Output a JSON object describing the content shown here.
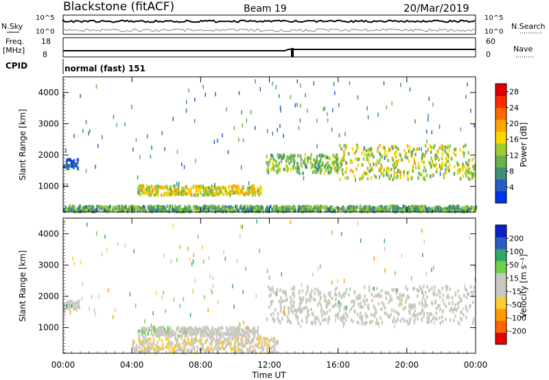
{
  "header": {
    "station": "Blackstone (fitACF)",
    "beam": "Beam 19",
    "date": "20/Mar/2019"
  },
  "strips": {
    "nsky_label": "N.Sky",
    "nsky_ticks": [
      "10^5",
      "10^0"
    ],
    "nsearch_label": "N.Search",
    "nsearch_ticks": [
      "10^5",
      "10^0"
    ],
    "freq_label": "Freq.",
    "freq_unit": "[MHz]",
    "freq_ticks": [
      "18",
      "8"
    ],
    "nave_label": "Nave",
    "nave_ticks": [
      "60",
      "0"
    ],
    "cpid_label": "CPID",
    "cpid_value": "normal (fast) 151"
  },
  "colors": {
    "power": [
      "#0033ee",
      "#2a5cc7",
      "#3e8f7a",
      "#6ab04c",
      "#9acd32",
      "#ffd700",
      "#ffa500",
      "#ff6a00",
      "#ff2a00",
      "#dd0000"
    ],
    "velocity": [
      "#e60000",
      "#ff6400",
      "#ff9a00",
      "#ffcc33",
      "#c8c8c0",
      "#c8c8c0",
      "#6fd04a",
      "#2fa86a",
      "#2a5cc7",
      "#0a22cc"
    ],
    "ground_scatter": "#c8c8c0"
  },
  "chart_data": [
    {
      "type": "heatmap",
      "name": "power",
      "ylabel": "Slant Range [km]",
      "xlabel": "Time UT",
      "x_ticks": [
        "00:00",
        "04:00",
        "08:00",
        "12:00",
        "16:00",
        "20:00",
        "00:00"
      ],
      "x_range_hours": [
        0,
        24
      ],
      "y_ticks": [
        1000,
        2000,
        3000,
        4000
      ],
      "ylim": [
        180,
        4500
      ],
      "colorbar": {
        "label": "Power [dB]",
        "ticks": [
          4,
          8,
          12,
          16,
          20,
          24,
          28
        ],
        "range": [
          0,
          30
        ]
      },
      "regions": [
        {
          "t": [
            0.0,
            0.9
          ],
          "r": [
            1550,
            1850
          ],
          "value": 5
        },
        {
          "t": [
            4.3,
            11.5
          ],
          "r": [
            700,
            1000
          ],
          "value": 15
        },
        {
          "t": [
            11.8,
            16.0
          ],
          "r": [
            1400,
            2000
          ],
          "value": 11
        },
        {
          "t": [
            16.0,
            23.9
          ],
          "r": [
            1200,
            2300
          ],
          "value": 14
        },
        {
          "t": [
            0.0,
            24.0
          ],
          "r": [
            180,
            350
          ],
          "value": 10
        }
      ]
    },
    {
      "type": "heatmap",
      "name": "velocity",
      "ylabel": "Slant Range [km]",
      "xlabel": "Time UT",
      "x_ticks": [
        "00:00",
        "04:00",
        "08:00",
        "12:00",
        "16:00",
        "20:00",
        "00:00"
      ],
      "x_range_hours": [
        0,
        24
      ],
      "y_ticks": [
        1000,
        2000,
        3000,
        4000
      ],
      "ylim": [
        180,
        4500
      ],
      "colorbar": {
        "label": "Velocity [m s⁻¹]",
        "ticks": [
          -200,
          -100,
          -50,
          -15,
          15,
          50,
          100,
          200
        ],
        "range": [
          -250,
          250
        ]
      },
      "regions": [
        {
          "t": [
            0.0,
            0.9
          ],
          "r": [
            1550,
            1850
          ],
          "value": 0
        },
        {
          "t": [
            4.3,
            7.4
          ],
          "r": [
            700,
            1000
          ],
          "value": 30
        },
        {
          "t": [
            7.4,
            11.5
          ],
          "r": [
            700,
            1000
          ],
          "value": 0
        },
        {
          "t": [
            11.8,
            23.9
          ],
          "r": [
            1100,
            2300
          ],
          "value": 0
        },
        {
          "t": [
            4.0,
            12.5
          ],
          "r": [
            180,
            650
          ],
          "value": -40
        }
      ]
    }
  ]
}
